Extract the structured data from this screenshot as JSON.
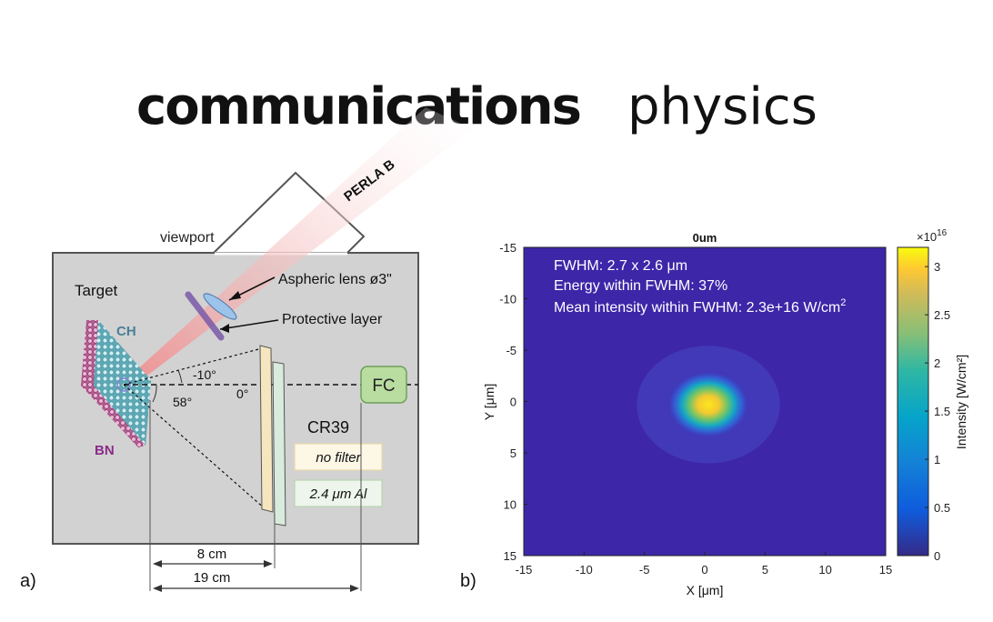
{
  "logo": {
    "word1": "communications",
    "word2": "physics"
  },
  "panel_a": {
    "label": "a)",
    "beam": "PERLA B",
    "viewport": "viewport",
    "lens": "Aspheric lens ø3\"",
    "protective": "Protective layer",
    "target": "Target",
    "ch": "CH",
    "bn": "BN",
    "angle1": "-10°",
    "angle2": "58°",
    "angle0": "0°",
    "fc": "FC",
    "cr39": "CR39",
    "filter1": "no filter",
    "filter2": "2.4 μm Al",
    "dist1": "8 cm",
    "dist2": "19 cm",
    "colors": {
      "fc_fill": "#b9dca0",
      "fc_stroke": "#6fa05a",
      "ch": "#4a8098",
      "bn": "#8a2a8a",
      "beam": "#f0b0b0"
    }
  },
  "panel_b": {
    "label": "b)",
    "title": "0um",
    "annot1": "FWHM: 2.7 x 2.6 μm",
    "annot2": "Energy within FWHM: 37%",
    "annot3_pre": "Mean intensity within FWHM: 2.3e+16 W/cm",
    "annot3_sup": "2",
    "colorbar_exp_base": "×10",
    "colorbar_exp": "16",
    "colorbar_label": "Intensity [W/cm²]"
  },
  "chart_data": {
    "type": "heatmap",
    "title": "0um",
    "xlabel": "X [μm]",
    "ylabel": "Y [μm]",
    "xlim": [
      -15,
      15
    ],
    "ylim": [
      -15,
      15
    ],
    "x_ticks": [
      "-15",
      "-10",
      "-5",
      "0",
      "5",
      "10",
      "15"
    ],
    "y_ticks": [
      "-15",
      "-10",
      "-5",
      "0",
      "5",
      "10",
      "15"
    ],
    "colorbar": {
      "label": "Intensity [W/cm²]",
      "scale": "1e16",
      "range": [
        0,
        3.2
      ],
      "ticks": [
        "0",
        "0.5",
        "1",
        "1.5",
        "2",
        "2.5",
        "3"
      ]
    },
    "spot": {
      "x_center": 0.3,
      "y_center": 0.3,
      "fwhm_x": 2.7,
      "fwhm_y": 2.6,
      "peak": 3.2
    },
    "colors": {
      "background": "#3e26a8",
      "peak": "#f9e71e"
    }
  }
}
